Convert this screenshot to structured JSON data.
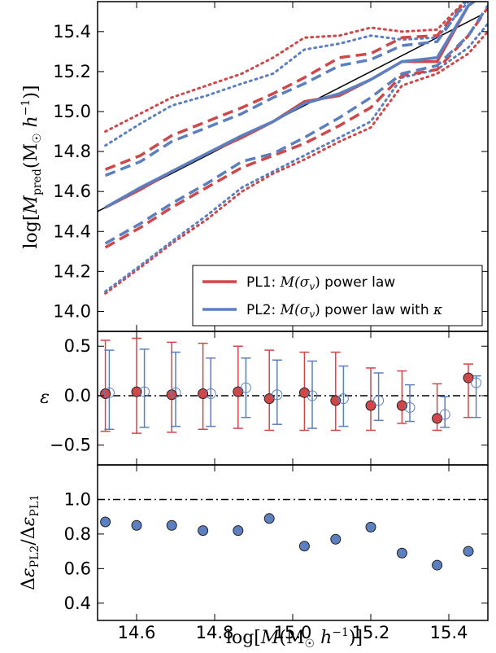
{
  "chart_data": [
    {
      "panel": "top",
      "type": "line",
      "ylabel": "log[M_pred(M☉ h⁻¹)]",
      "xlim": [
        14.5,
        15.5
      ],
      "ylim": [
        13.9,
        15.55
      ],
      "yticks": [
        "14.0",
        "14.2",
        "14.4",
        "14.6",
        "14.8",
        "15.0",
        "15.2",
        "15.4"
      ],
      "colors": {
        "PL1": "#d0474a",
        "PL2": "#5b7fbf"
      },
      "legend": {
        "position": "lower-right",
        "entries": [
          {
            "id": "PL1",
            "prefix": "PL1: ",
            "math": "M(σ",
            "math_sub": "v",
            "math_end": ")",
            "suffix": " power law",
            "kappa": ""
          },
          {
            "id": "PL2",
            "prefix": "PL2: ",
            "math": "M(σ",
            "math_sub": "v",
            "math_end": ")",
            "suffix": " power law with ",
            "kappa": "κ"
          }
        ]
      },
      "identity_line": {
        "x": [
          14.5,
          15.48
        ],
        "y": [
          14.5,
          15.48
        ]
      },
      "x": [
        14.52,
        14.61,
        14.69,
        14.78,
        14.87,
        14.95,
        15.03,
        15.12,
        15.2,
        15.28,
        15.37,
        15.45,
        15.5
      ],
      "series": [
        {
          "name": "PL1",
          "style": "median",
          "values": [
            14.52,
            14.61,
            14.7,
            14.79,
            14.87,
            14.95,
            15.05,
            15.08,
            15.16,
            15.25,
            15.25,
            15.53,
            15.6
          ]
        },
        {
          "name": "PL1",
          "style": "upper-1sigma",
          "values": [
            14.71,
            14.78,
            14.88,
            14.95,
            15.02,
            15.09,
            15.17,
            15.27,
            15.29,
            15.37,
            15.38,
            15.57,
            15.6
          ]
        },
        {
          "name": "PL1",
          "style": "lower-1sigma",
          "values": [
            14.32,
            14.42,
            14.52,
            14.62,
            14.72,
            14.78,
            14.84,
            14.93,
            15.02,
            15.18,
            15.21,
            15.38,
            15.52
          ]
        },
        {
          "name": "PL1",
          "style": "upper-2sigma",
          "values": [
            14.9,
            14.99,
            15.07,
            15.13,
            15.19,
            15.27,
            15.37,
            15.38,
            15.42,
            15.4,
            15.41,
            15.57,
            15.6
          ]
        },
        {
          "name": "PL1",
          "style": "lower-2sigma",
          "values": [
            14.09,
            14.22,
            14.34,
            14.46,
            14.6,
            14.69,
            14.76,
            14.85,
            14.92,
            15.13,
            15.19,
            15.29,
            15.4
          ]
        },
        {
          "name": "PL2",
          "style": "median",
          "values": [
            14.52,
            14.62,
            14.7,
            14.79,
            14.88,
            14.95,
            15.04,
            15.09,
            15.16,
            15.25,
            15.27,
            15.53,
            15.6
          ]
        },
        {
          "name": "PL2",
          "style": "upper-1sigma",
          "values": [
            14.68,
            14.75,
            14.85,
            14.92,
            14.99,
            15.07,
            15.14,
            15.23,
            15.26,
            15.33,
            15.35,
            15.57,
            15.6
          ]
        },
        {
          "name": "PL2",
          "style": "lower-1sigma",
          "values": [
            14.34,
            14.44,
            14.54,
            14.64,
            14.75,
            14.79,
            14.87,
            14.97,
            15.07,
            15.19,
            15.23,
            15.38,
            15.53
          ]
        },
        {
          "name": "PL2",
          "style": "upper-2sigma",
          "values": [
            14.83,
            14.94,
            15.03,
            15.08,
            15.14,
            15.19,
            15.31,
            15.34,
            15.38,
            15.36,
            15.37,
            15.55,
            15.6
          ]
        },
        {
          "name": "PL2",
          "style": "lower-2sigma",
          "values": [
            14.1,
            14.23,
            14.35,
            14.48,
            14.62,
            14.7,
            14.78,
            14.87,
            14.95,
            15.17,
            15.21,
            15.32,
            15.44
          ]
        }
      ]
    },
    {
      "panel": "middle",
      "type": "scatter",
      "ylabel": "ε",
      "xlim": [
        14.5,
        15.5
      ],
      "ylim": [
        -0.7,
        0.65
      ],
      "yticks": [
        "−0.5",
        "0.0",
        "0.5"
      ],
      "reference_line": 0.0,
      "series": [
        {
          "name": "PL1",
          "marker": "filled-circle",
          "x": [
            14.52,
            14.6,
            14.69,
            14.77,
            14.86,
            14.94,
            15.03,
            15.11,
            15.2,
            15.28,
            15.37,
            15.45
          ],
          "values": [
            0.02,
            0.04,
            0.01,
            0.02,
            0.04,
            -0.03,
            0.03,
            -0.05,
            -0.1,
            -0.1,
            -0.23,
            0.18
          ],
          "err_low": [
            0.38,
            0.42,
            0.38,
            0.36,
            0.37,
            0.32,
            0.38,
            0.3,
            0.25,
            0.18,
            0.12,
            0.4
          ],
          "err_high": [
            0.54,
            0.54,
            0.53,
            0.51,
            0.46,
            0.49,
            0.41,
            0.49,
            0.38,
            0.35,
            0.35,
            0.14
          ]
        },
        {
          "name": "PL2",
          "marker": "open-circle",
          "x": [
            14.53,
            14.62,
            14.7,
            14.79,
            14.88,
            14.96,
            15.05,
            15.13,
            15.22,
            15.3,
            15.39,
            15.47
          ],
          "values": [
            0.03,
            0.04,
            0.03,
            0.02,
            0.08,
            0.01,
            0.0,
            -0.03,
            -0.05,
            -0.12,
            -0.19,
            0.13
          ],
          "err_low": [
            0.37,
            0.36,
            0.34,
            0.33,
            0.3,
            0.3,
            0.33,
            0.28,
            0.2,
            0.14,
            0.13,
            0.35
          ],
          "err_high": [
            0.43,
            0.43,
            0.41,
            0.36,
            0.3,
            0.35,
            0.35,
            0.33,
            0.28,
            0.23,
            0.18,
            0.07
          ]
        }
      ]
    },
    {
      "panel": "bottom",
      "type": "scatter",
      "xlabel": "log[M(M☉ h⁻¹)]",
      "ylabel": "Δε_PL2 / Δε_PL1",
      "xlim": [
        14.5,
        15.5
      ],
      "ylim": [
        0.3,
        1.2
      ],
      "xticks": [
        "14.6",
        "14.8",
        "15.0",
        "15.2",
        "15.4"
      ],
      "yticks": [
        "0.4",
        "0.6",
        "0.8",
        "1.0"
      ],
      "reference_line": 1.0,
      "series": [
        {
          "marker": "filled-circle",
          "x": [
            14.52,
            14.6,
            14.69,
            14.77,
            14.86,
            14.94,
            15.03,
            15.11,
            15.2,
            15.28,
            15.37,
            15.45
          ],
          "values": [
            0.87,
            0.85,
            0.85,
            0.82,
            0.82,
            0.89,
            0.73,
            0.77,
            0.84,
            0.69,
            0.62,
            0.7
          ]
        }
      ]
    }
  ]
}
